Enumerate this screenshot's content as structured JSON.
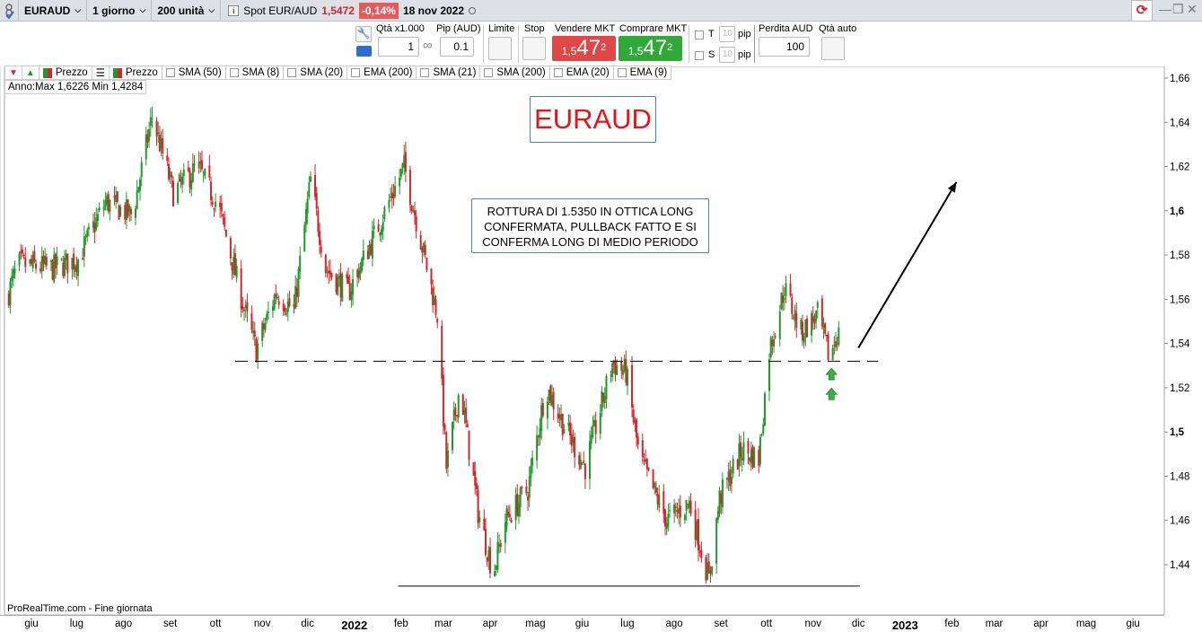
{
  "topbar": {
    "symbol": "EURAUD",
    "timeframe": "1 giorno",
    "units": "200 unità",
    "spot_label": "Spot EUR/AUD",
    "spot_price": "1,5472",
    "change": "-0,14%",
    "date": "18 nov 2022"
  },
  "order": {
    "qty_label": "Qtà x1.000",
    "qty_value": "1",
    "pip_label": "Pip (AUD)",
    "pip_value": "0.1",
    "limit_label": "Limite",
    "stop_label": "Stop",
    "sell_label": "Vendere MKT",
    "buy_label": "Comprare MKT",
    "price_small": "1,5",
    "price_big": "47",
    "price_sup": "2",
    "t_label": "T",
    "s_label": "S",
    "pip_t": "10",
    "pip_s": "10",
    "pip_unit": "pip",
    "loss_label": "Perdita AUD",
    "loss_value": "100",
    "auto_qty_label": "Qtà auto"
  },
  "indicators": [
    "Prezzo",
    "Prezzo",
    "SMA (50)",
    "SMA (8)",
    "SMA (20)",
    "EMA (200)",
    "SMA (21)",
    "SMA (200)",
    "EMA (20)",
    "EMA (9)"
  ],
  "year_info": "Anno:Max 1,6226 Min 1,4284",
  "footer": "ProRealTime.com - Fine giornata",
  "colors": {
    "up": "#1e9a2b",
    "down": "#d8232a",
    "accent": "#4a7fc1"
  },
  "chart_data": {
    "type": "candlestick",
    "symbol_box": "EURAUD",
    "annotation": "ROTTURA DI 1.5350 IN OTTICA LONG CONFERMATA, PULLBACK FATTO E SI CONFERMA LONG DI MEDIO PERIODO",
    "ylim": [
      1.42,
      1.67
    ],
    "yticks": [
      "1,66",
      "1,64",
      "1,62",
      "1,6",
      "1,58",
      "1,56",
      "1,54",
      "1,52",
      "1,5",
      "1,48",
      "1,46",
      "1,44"
    ],
    "yticks_values": [
      1.66,
      1.64,
      1.62,
      1.6,
      1.58,
      1.56,
      1.54,
      1.52,
      1.5,
      1.48,
      1.46,
      1.44
    ],
    "xticks": [
      {
        "label": "giu",
        "date": "2021-06-01"
      },
      {
        "label": "lug",
        "date": "2021-07-01"
      },
      {
        "label": "ago",
        "date": "2021-08-01"
      },
      {
        "label": "set",
        "date": "2021-09-01"
      },
      {
        "label": "ott",
        "date": "2021-10-01"
      },
      {
        "label": "nov",
        "date": "2021-11-01"
      },
      {
        "label": "dic",
        "date": "2021-12-01"
      },
      {
        "label": "2022",
        "date": "2022-01-01"
      },
      {
        "label": "feb",
        "date": "2022-02-01"
      },
      {
        "label": "mar",
        "date": "2022-03-01"
      },
      {
        "label": "apr",
        "date": "2022-04-01"
      },
      {
        "label": "mag",
        "date": "2022-05-01"
      },
      {
        "label": "giu",
        "date": "2022-06-01"
      },
      {
        "label": "lug",
        "date": "2022-07-01"
      },
      {
        "label": "ago",
        "date": "2022-08-01"
      },
      {
        "label": "set",
        "date": "2022-09-01"
      },
      {
        "label": "ott",
        "date": "2022-10-01"
      },
      {
        "label": "nov",
        "date": "2022-11-01"
      },
      {
        "label": "dic",
        "date": "2022-12-01"
      },
      {
        "label": "2023",
        "date": "2023-01-01"
      },
      {
        "label": "feb",
        "date": "2023-02-01"
      },
      {
        "label": "mar",
        "date": "2023-03-01"
      },
      {
        "label": "apr",
        "date": "2023-04-01"
      },
      {
        "label": "mag",
        "date": "2023-05-01"
      },
      {
        "label": "giu",
        "date": "2023-06-01"
      }
    ],
    "close_path": [
      [
        "2021-05-16",
        1.561
      ],
      [
        "2021-05-23",
        1.576
      ],
      [
        "2021-06-15",
        1.574
      ],
      [
        "2021-07-02",
        1.578
      ],
      [
        "2021-07-20",
        1.604
      ],
      [
        "2021-08-07",
        1.598
      ],
      [
        "2021-08-20",
        1.643
      ],
      [
        "2021-09-03",
        1.608
      ],
      [
        "2021-09-19",
        1.62
      ],
      [
        "2021-10-03",
        1.602
      ],
      [
        "2021-10-21",
        1.553
      ],
      [
        "2021-10-28",
        1.537
      ],
      [
        "2021-11-10",
        1.563
      ],
      [
        "2021-11-22",
        1.555
      ],
      [
        "2021-12-03",
        1.614
      ],
      [
        "2021-12-13",
        1.574
      ],
      [
        "2021-12-28",
        1.563
      ],
      [
        "2022-01-15",
        1.59
      ],
      [
        "2022-02-03",
        1.62
      ],
      [
        "2022-02-13",
        1.59
      ],
      [
        "2022-02-25",
        1.553
      ],
      [
        "2022-03-03",
        1.484
      ],
      [
        "2022-03-12",
        1.521
      ],
      [
        "2022-03-24",
        1.464
      ],
      [
        "2022-04-03",
        1.436
      ],
      [
        "2022-04-11",
        1.46
      ],
      [
        "2022-04-26",
        1.474
      ],
      [
        "2022-05-08",
        1.521
      ],
      [
        "2022-05-22",
        1.5
      ],
      [
        "2022-06-03",
        1.484
      ],
      [
        "2022-06-21",
        1.531
      ],
      [
        "2022-06-30",
        1.527
      ],
      [
        "2022-07-09",
        1.488
      ],
      [
        "2022-07-27",
        1.46
      ],
      [
        "2022-08-11",
        1.468
      ],
      [
        "2022-08-24",
        1.433
      ],
      [
        "2022-08-31",
        1.47
      ],
      [
        "2022-09-15",
        1.492
      ],
      [
        "2022-09-26",
        1.488
      ],
      [
        "2022-10-03",
        1.537
      ],
      [
        "2022-10-13",
        1.565
      ],
      [
        "2022-10-24",
        1.545
      ],
      [
        "2022-11-04",
        1.553
      ],
      [
        "2022-11-12",
        1.533
      ],
      [
        "2022-11-18",
        1.5472
      ]
    ],
    "resistance_line": {
      "price": 1.532,
      "from": "2021-10-14",
      "to": "2022-12-14",
      "style": "dashed"
    },
    "support_line": {
      "price": 1.4303,
      "from": "2022-01-30",
      "to": "2022-12-02",
      "style": "solid"
    },
    "arrow": {
      "from": [
        "2022-12-01",
        1.538
      ],
      "to": [
        "2023-02-04",
        1.613
      ]
    },
    "signal_arrows": [
      {
        "date": "2022-11-12",
        "price": 1.526
      },
      {
        "date": "2022-11-12",
        "price": 1.517
      }
    ]
  }
}
